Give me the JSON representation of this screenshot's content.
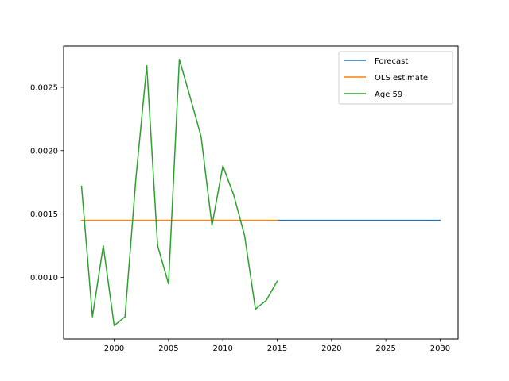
{
  "chart_data": {
    "type": "line",
    "title": "",
    "xlabel": "",
    "ylabel": "",
    "xlim": [
      1995.35,
      2031.65
    ],
    "ylim": [
      0.000515,
      0.002825
    ],
    "x_ticks": [
      2000,
      2005,
      2010,
      2015,
      2020,
      2025,
      2030
    ],
    "x_tick_labels": [
      "2000",
      "2005",
      "2010",
      "2015",
      "2020",
      "2025",
      "2030"
    ],
    "y_ticks": [
      0.001,
      0.0015,
      0.002,
      0.0025
    ],
    "y_tick_labels": [
      "0.0010",
      "0.0015",
      "0.0020",
      "0.0025"
    ],
    "grid": false,
    "legend_position": "top-right",
    "series": [
      {
        "name": "Forecast",
        "color": "#1f77b4",
        "x": [
          2015,
          2016,
          2017,
          2018,
          2019,
          2020,
          2021,
          2022,
          2023,
          2024,
          2025,
          2026,
          2027,
          2028,
          2029,
          2030
        ],
        "y": [
          0.00145,
          0.00145,
          0.00145,
          0.00145,
          0.00145,
          0.00145,
          0.00145,
          0.00145,
          0.00145,
          0.00145,
          0.00145,
          0.00145,
          0.00145,
          0.00145,
          0.00145,
          0.00145
        ]
      },
      {
        "name": "OLS estimate",
        "color": "#ff7f0e",
        "x": [
          1997,
          1998,
          1999,
          2000,
          2001,
          2002,
          2003,
          2004,
          2005,
          2006,
          2007,
          2008,
          2009,
          2010,
          2011,
          2012,
          2013,
          2014,
          2015
        ],
        "y": [
          0.00145,
          0.00145,
          0.00145,
          0.00145,
          0.00145,
          0.00145,
          0.00145,
          0.00145,
          0.00145,
          0.00145,
          0.00145,
          0.00145,
          0.00145,
          0.00145,
          0.00145,
          0.00145,
          0.00145,
          0.00145,
          0.00145
        ]
      },
      {
        "name": "Age 59",
        "color": "#2ca02c",
        "x": [
          1997,
          1998,
          1999,
          2000,
          2001,
          2002,
          2003,
          2004,
          2005,
          2006,
          2007,
          2008,
          2009,
          2010,
          2011,
          2012,
          2013,
          2014,
          2015
        ],
        "y": [
          0.00172,
          0.00069,
          0.00125,
          0.00062,
          0.00069,
          0.00178,
          0.00267,
          0.00125,
          0.00095,
          0.00272,
          0.00242,
          0.00211,
          0.00141,
          0.00188,
          0.00165,
          0.00133,
          0.00075,
          0.00082,
          0.00097
        ]
      }
    ]
  }
}
